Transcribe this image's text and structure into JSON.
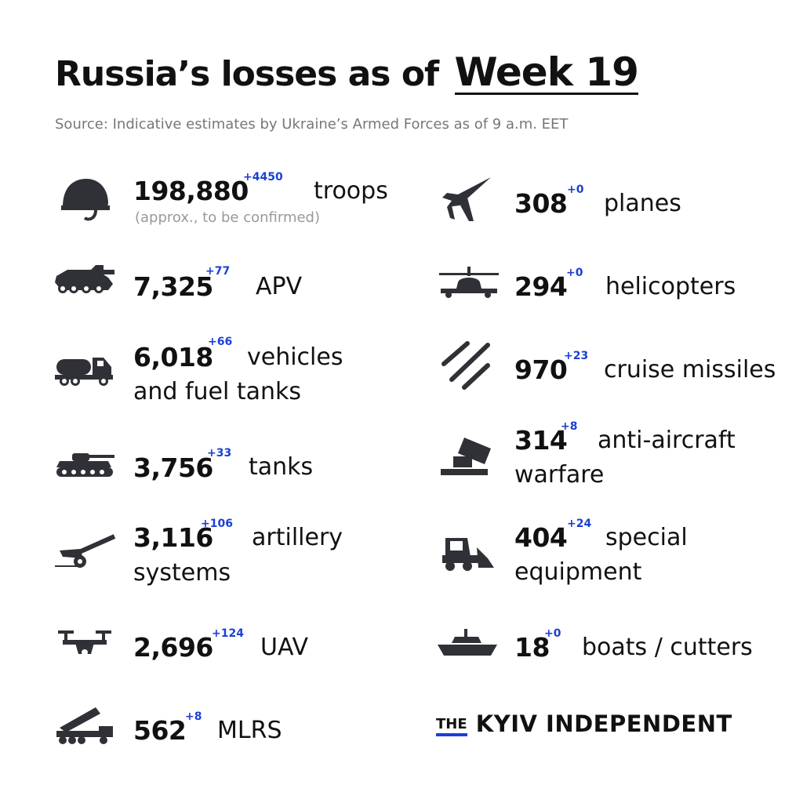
{
  "header": {
    "title_prefix": "Russia’s losses as of",
    "title_week": "Week 19",
    "source": "Source: Indicative estimates by Ukraine’s Armed Forces as of 9 a.m. EET"
  },
  "left": {
    "troops": {
      "value": "198,880",
      "delta": "+4450",
      "label": "troops",
      "note": "(approx., to be confirmed)",
      "icon": "soldier-helmet-icon"
    },
    "apv": {
      "value": "7,325",
      "delta": "+77",
      "label": "APV",
      "icon": "armored-vehicle-icon"
    },
    "vehicles": {
      "value": "6,018",
      "delta": "+66",
      "label_line1": "vehicles",
      "label_line2": "and fuel tanks",
      "icon": "fuel-truck-icon"
    },
    "tanks": {
      "value": "3,756",
      "delta": "+33",
      "label": "tanks",
      "icon": "tank-icon"
    },
    "artillery": {
      "value": "3,116",
      "delta": "+106",
      "label_line1": "artillery",
      "label_line2": "systems",
      "icon": "artillery-gun-icon"
    },
    "uav": {
      "value": "2,696",
      "delta": "+124",
      "label": "UAV",
      "icon": "drone-icon"
    },
    "mlrs": {
      "value": "562",
      "delta": "+8",
      "label": "MLRS",
      "icon": "rocket-launcher-icon"
    }
  },
  "right": {
    "planes": {
      "value": "308",
      "delta": "+0",
      "label": "planes",
      "icon": "fighter-jet-icon"
    },
    "helicopters": {
      "value": "294",
      "delta": "+0",
      "label": "helicopters",
      "icon": "helicopter-icon"
    },
    "cruise_missiles": {
      "value": "970",
      "delta": "+23",
      "label": "cruise missiles",
      "icon": "missiles-icon"
    },
    "anti_aircraft": {
      "value": "314",
      "delta": "+8",
      "label_line1": "anti-aircraft",
      "label_line2": "warfare",
      "icon": "anti-aircraft-icon"
    },
    "special_equipment": {
      "value": "404",
      "delta": "+24",
      "label_line1": "special",
      "label_line2": "equipment",
      "icon": "skid-steer-loader-icon"
    },
    "boats": {
      "value": "18",
      "delta": "+0",
      "label": "boats / cutters",
      "icon": "warship-icon"
    }
  },
  "logo": {
    "the": "THE",
    "name": "KYIV INDEPENDENT"
  },
  "colors": {
    "accent": "#1a3fd6",
    "icon": "#2f3136",
    "text": "#111111",
    "muted": "#777777"
  }
}
